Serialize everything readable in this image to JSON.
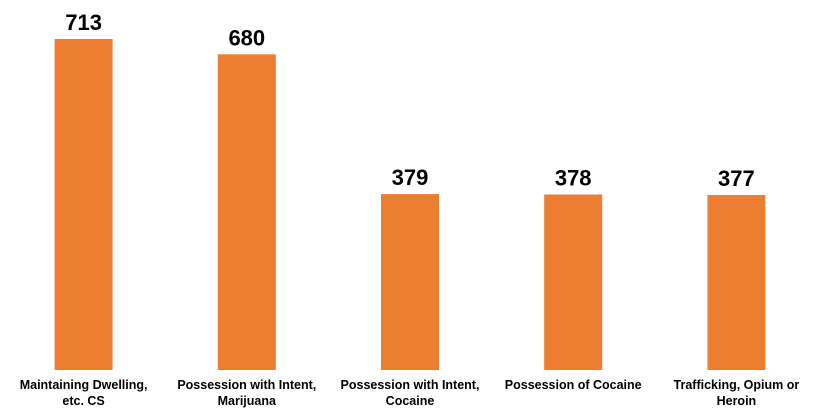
{
  "chart_data": {
    "type": "bar",
    "categories": [
      [
        "Maintaining Dwelling,",
        "etc. CS"
      ],
      [
        "Possession with Intent,",
        "Marijuana"
      ],
      [
        "Possession with Intent,",
        "Cocaine"
      ],
      [
        "Possession of Cocaine"
      ],
      [
        "Trafficking, Opium or",
        "Heroin"
      ]
    ],
    "values": [
      713,
      680,
      379,
      378,
      377
    ],
    "data_labels": [
      "713",
      "680",
      "379",
      "378",
      "377"
    ],
    "title": "",
    "xlabel": "",
    "ylabel": "",
    "ylim": [
      0,
      713
    ],
    "bar_color": "#ED7D31",
    "grid": false,
    "legend": "none"
  }
}
